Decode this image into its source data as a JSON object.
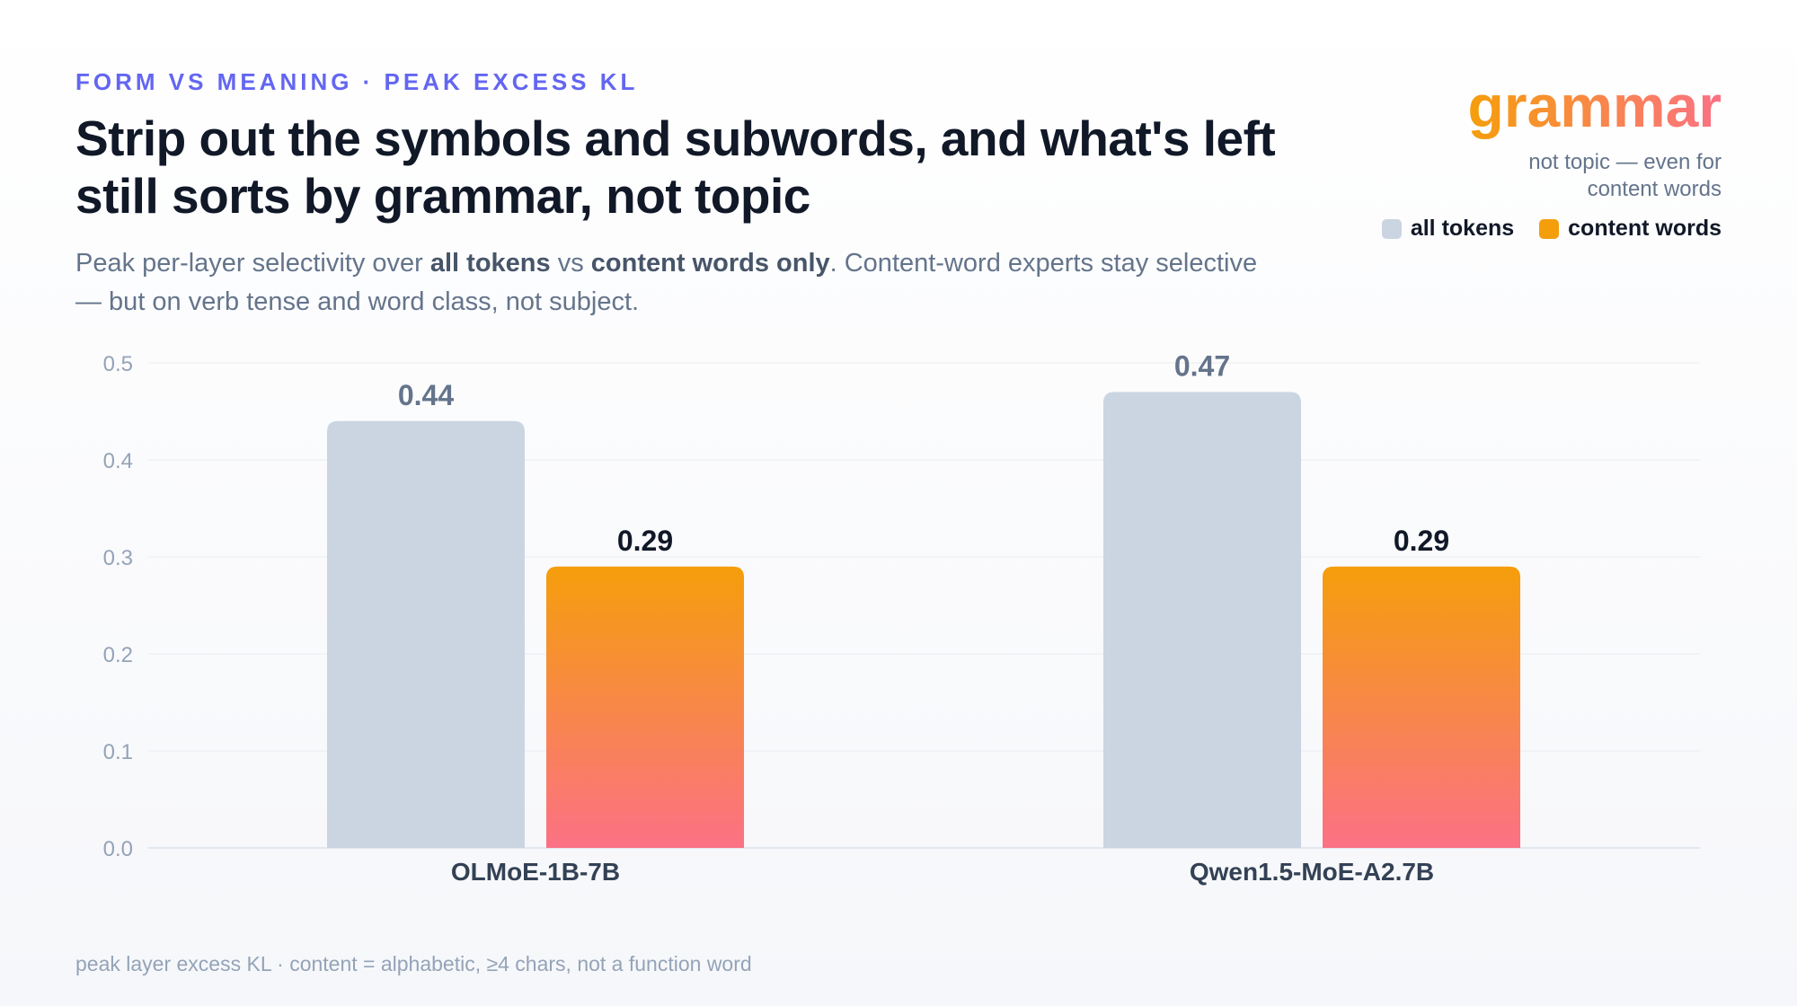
{
  "header": {
    "kicker": "FORM VS MEANING · PEAK EXCESS KL",
    "title": "Strip out the symbols and subwords, and what's left still sorts by grammar, not topic",
    "subtitle_parts": {
      "p1": "Peak per-layer selectivity over ",
      "b1": "all tokens",
      "p2": " vs ",
      "b2": "content words only",
      "p3": ". Content-word experts stay selective — but on verb tense and word class, not subject."
    }
  },
  "callout": {
    "word": "grammar",
    "note": "not topic — even for content words"
  },
  "legend": {
    "all_tokens": "all tokens",
    "content_words": "content words"
  },
  "colors": {
    "all_tokens": "#cbd5e1",
    "content_top": "#f59e0b",
    "content_bottom": "#fb7185",
    "kicker": "#6366f1"
  },
  "footnote": "peak layer excess KL · content = alphabetic, ≥4 chars, not a function word",
  "chart_data": {
    "type": "bar",
    "categories": [
      "OLMoE-1B-7B",
      "Qwen1.5-MoE-A2.7B"
    ],
    "series": [
      {
        "name": "all tokens",
        "values": [
          0.44,
          0.47
        ]
      },
      {
        "name": "content words",
        "values": [
          0.29,
          0.29
        ]
      }
    ],
    "value_labels": [
      [
        "0.44",
        "0.47"
      ],
      [
        "0.29",
        "0.29"
      ]
    ],
    "ylim": [
      0,
      0.5
    ],
    "yticks": [
      0.0,
      0.1,
      0.2,
      0.3,
      0.4,
      0.5
    ],
    "ytick_labels": [
      "0.0",
      "0.1",
      "0.2",
      "0.3",
      "0.4",
      "0.5"
    ],
    "grid": true,
    "legend_position": "top-right"
  }
}
